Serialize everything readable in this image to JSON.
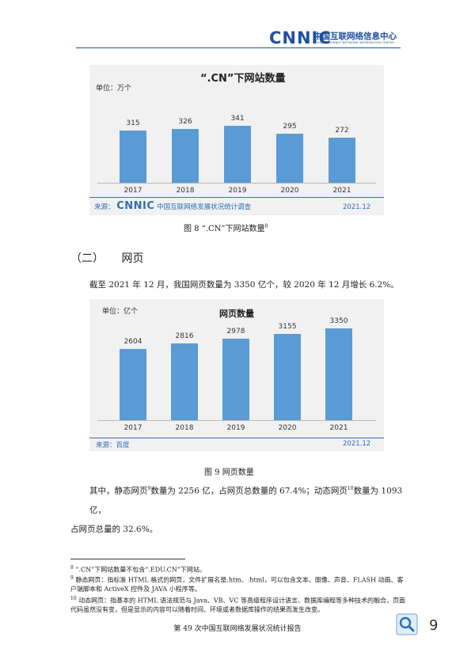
{
  "header": {
    "logo": "CNNIC",
    "org_cn": "中国互联网络信息中心",
    "org_en": "CHINA INTERNET NETWORK INFORMATION CENTER"
  },
  "figure8": {
    "unit": "单位：万个",
    "source_label": "来源：",
    "source_logo": "CNNIC",
    "source_text": "中国互联网络发展状况统计调查",
    "source_date": "2021.12",
    "caption": "图 8 “.CN”下网站数量",
    "caption_sup": "8"
  },
  "section": {
    "number": "（二）",
    "title": "网页"
  },
  "paragraph1": "截至 2021 年 12 月，我国网页数量为 3350 亿个，较 2020 年 12 月增长 6.2%。",
  "figure9": {
    "unit": "单位：亿个",
    "source": "来源：百度",
    "source_date": "2021.12",
    "caption": "图 9 网页数量"
  },
  "paragraph2": {
    "part1": "其中，静态网页",
    "sup1": "9",
    "part2": "数量为 2256 亿，占网页总数量的 67.4%；动态网页",
    "sup2": "10",
    "part3": "数量为 1093 亿，",
    "line2": "占网页总量的 32.6%。"
  },
  "footnotes": [
    {
      "num": "8",
      "text": "“.CN”下网站数量不包含“.EDU.CN”下网站。"
    },
    {
      "num": "9",
      "text": "静态网页：指标准 HTML 格式的网页，文件扩展名是.htm、.html，可以包含文本、图像、声音、FLASH 动画、客户端脚本和 ActiveX 控件及 JAVA 小程序等。"
    },
    {
      "num": "10",
      "text": "动态网页：指基本的 HTML 语法规范与 Java、VB、VC 等高级程序设计语言、数据库编程等多种技术的融合，页面代码虽然没有变，但是显示的内容可以随着时间、环境或者数据库操作的结果而发生改变。"
    }
  ],
  "footer": {
    "text": "第 49 次中国互联网络发展状况统计报告",
    "page": "9"
  },
  "colors": {
    "bar": "#5b9bd5",
    "brand": "#1f4fa0",
    "chart_bg": "#f1f1f1"
  },
  "chart_data": [
    {
      "type": "bar",
      "title": "“.CN”下网站数量",
      "categories": [
        "2017",
        "2018",
        "2019",
        "2020",
        "2021"
      ],
      "values": [
        315,
        326,
        341,
        295,
        272
      ],
      "ylabel": "单位：万个",
      "ylim": [
        0,
        400
      ],
      "grid": false,
      "legend": "none"
    },
    {
      "type": "bar",
      "title": "网页数量",
      "categories": [
        "2017",
        "2018",
        "2019",
        "2020",
        "2021"
      ],
      "values": [
        2604,
        2816,
        2978,
        3155,
        3350
      ],
      "ylabel": "单位：亿个",
      "ylim": [
        0,
        4000
      ],
      "grid": false,
      "legend": "none"
    }
  ]
}
